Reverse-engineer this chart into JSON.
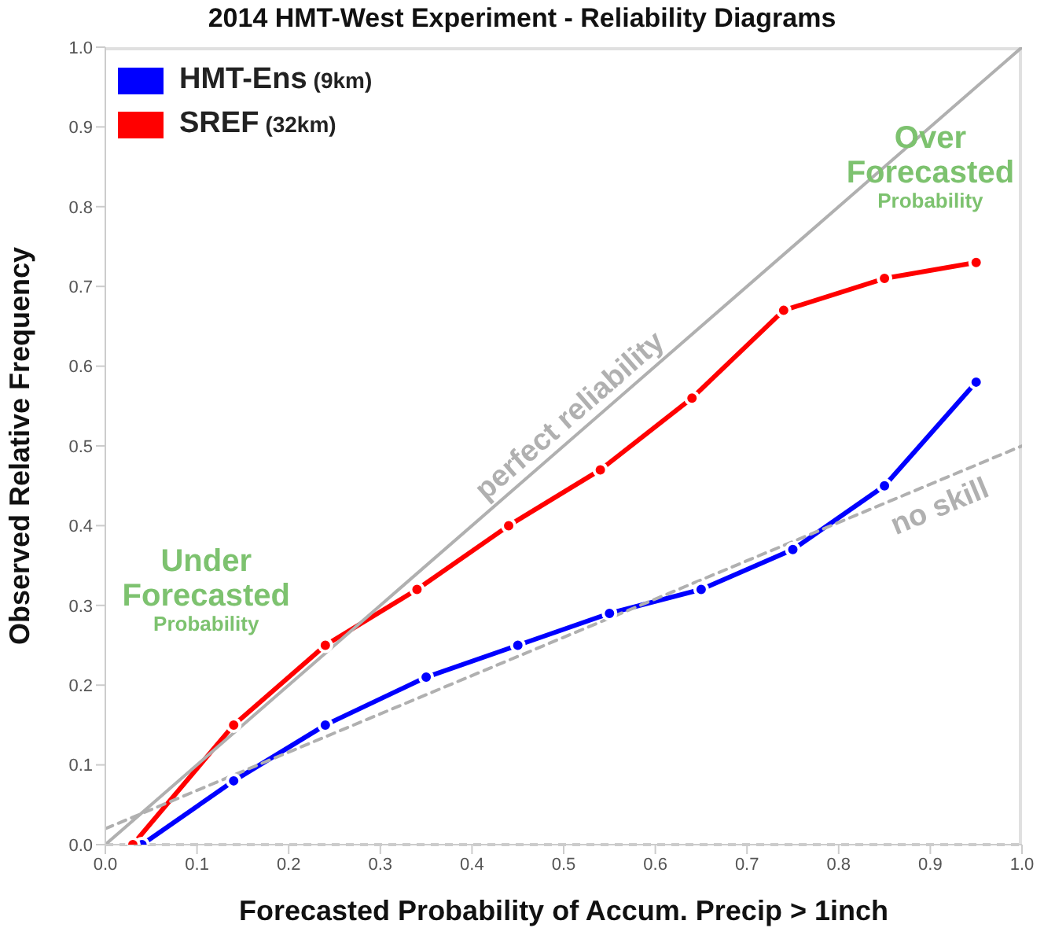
{
  "chart_data": {
    "type": "line",
    "title": "2014 HMT-West Experiment - Reliability Diagrams",
    "xlabel": "Forecasted Probability of Accum. Precip > 1inch",
    "ylabel": "Observed Relative Frequency",
    "xlim": [
      0,
      1
    ],
    "ylim": [
      0,
      1
    ],
    "xticks": [
      {
        "value": 0,
        "label": "0.0"
      },
      0.1,
      0.2,
      0.3,
      0.4,
      0.5,
      0.6,
      0.7,
      0.8,
      0.9,
      {
        "value": 1,
        "label": "1.0"
      }
    ],
    "yticks": [
      {
        "value": 0,
        "label": "0.0"
      },
      0.1,
      0.2,
      0.3,
      0.4,
      0.5,
      0.6,
      0.7,
      0.8,
      0.9,
      {
        "value": 1,
        "label": "1.0"
      }
    ],
    "legend": "top left",
    "marker": "circle",
    "line_style": "solid",
    "series": [
      {
        "name": "HMT-Ens (9km)",
        "color": "#0000ff",
        "x": [
          0.04,
          0.14,
          0.24,
          0.35,
          0.45,
          0.55,
          0.65,
          0.75,
          0.85,
          0.95
        ],
        "values": [
          0.0,
          0.08,
          0.15,
          0.21,
          0.25,
          0.29,
          0.32,
          0.37,
          0.45,
          0.58
        ]
      },
      {
        "name": "SREF (32km)",
        "color": "#ff0000",
        "x": [
          0.03,
          0.14,
          0.24,
          0.34,
          0.44,
          0.54,
          0.64,
          0.74,
          0.85,
          0.95
        ],
        "values": [
          0.0,
          0.15,
          0.25,
          0.32,
          0.4,
          0.47,
          0.56,
          0.67,
          0.71,
          0.73
        ]
      },
      {
        "name": "perfect reliability",
        "type": "line",
        "color": "#b0b0b0",
        "marker": "none",
        "x": [
          0,
          1
        ],
        "values": [
          0,
          1
        ]
      },
      {
        "name": "no skill",
        "type": "line",
        "color": "#b0b0b0",
        "marker": "none",
        "line_style": "dashed",
        "x": [
          0,
          1
        ],
        "values": [
          0.02,
          0.5
        ]
      }
    ],
    "ref_lines": [
      {
        "axis": "y",
        "value": 0,
        "color": "#cccccc",
        "line_style": "dashed"
      }
    ],
    "annotations": [
      "Under Forecasted Probability",
      "Over Forecasted Probability"
    ]
  }
}
